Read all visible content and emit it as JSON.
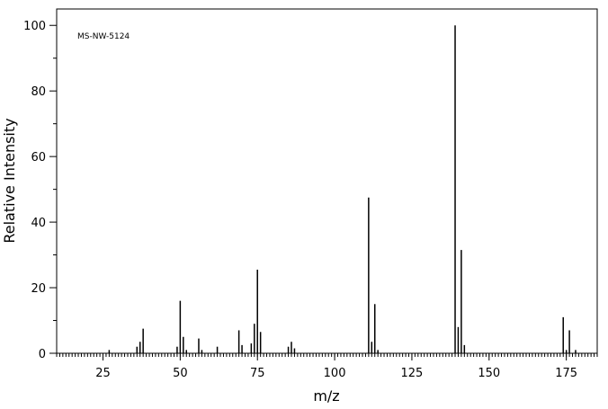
{
  "chart_data": {
    "type": "stick",
    "annotation": "MS-NW-5124",
    "x_label": "m/z",
    "y_label": "Relative Intensity",
    "x": [
      27,
      36,
      37,
      38,
      49,
      50,
      51,
      52,
      56,
      57,
      62,
      69,
      70,
      73,
      74,
      75,
      76,
      85,
      86,
      87,
      111,
      112,
      113,
      114,
      139,
      140,
      141,
      142,
      174,
      175,
      176,
      178
    ],
    "values": [
      1,
      2,
      3.5,
      7.5,
      2,
      16,
      5,
      1,
      4.5,
      1,
      2,
      7,
      2.5,
      3,
      9,
      25.5,
      6.5,
      2,
      3.5,
      1.5,
      47.5,
      3.5,
      15,
      1,
      100,
      8,
      31.5,
      2.5,
      11,
      1,
      7,
      1
    ],
    "color": "#000000",
    "xlim": [
      10,
      185
    ],
    "xticks": [
      25,
      50,
      75,
      100,
      125,
      150,
      175
    ],
    "ylim": [
      0,
      105
    ],
    "yticks": [
      0,
      20,
      40,
      60,
      80,
      100
    ]
  }
}
